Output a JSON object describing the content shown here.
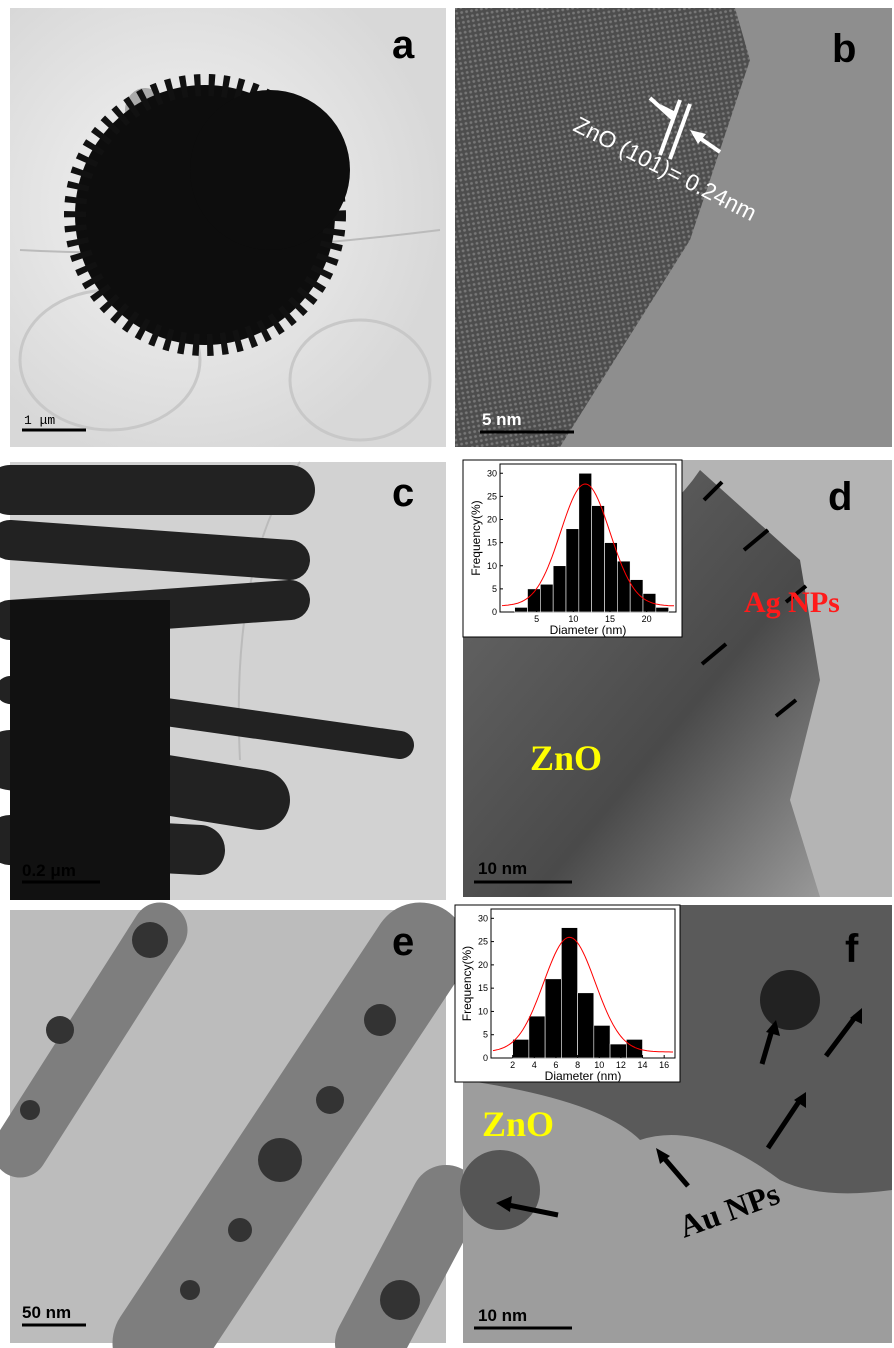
{
  "panels": [
    {
      "label": "a",
      "scale_bar": "1 μm"
    },
    {
      "label": "b",
      "scale_bar": "5 nm",
      "annotation": "ZnO (101)= 0.24nm"
    },
    {
      "label": "c",
      "scale_bar": "0.2 μm"
    },
    {
      "label": "d",
      "scale_bar": "10 nm",
      "annotations": [
        "Ag NPs",
        "ZnO"
      ],
      "inset": {
        "type": "histogram",
        "xlabel": "Diameter (nm)",
        "ylabel": "Frequency(%)",
        "bins": [
          2,
          3.75,
          5.5,
          7.25,
          9,
          10.75,
          12.5,
          14.25,
          16,
          17.75,
          19.5,
          21.25,
          23
        ],
        "values": [
          1,
          5,
          6,
          10,
          18,
          30,
          23,
          15,
          11,
          7,
          4,
          1
        ],
        "xlim": [
          0,
          24
        ],
        "ylim": [
          0,
          32
        ],
        "xticks": [
          5,
          10,
          15,
          20
        ],
        "yticks": [
          0,
          5,
          10,
          15,
          20,
          25,
          30
        ],
        "color": "#000000",
        "fit_color": "#ff0000"
      }
    },
    {
      "label": "e",
      "scale_bar": "50 nm"
    },
    {
      "label": "f",
      "scale_bar": "10 nm",
      "annotations": [
        "ZnO",
        "Au NPs"
      ],
      "inset": {
        "type": "histogram",
        "xlabel": "Diameter (nm)",
        "ylabel": "Frequency(%)",
        "bins": [
          2,
          3.5,
          5,
          6.5,
          8,
          9.5,
          11,
          12.5,
          14
        ],
        "values": [
          4,
          9,
          17,
          28,
          14,
          7,
          3,
          4
        ],
        "xlim": [
          0,
          17
        ],
        "ylim": [
          0,
          32
        ],
        "xticks": [
          2,
          4,
          6,
          8,
          10,
          12,
          14,
          16
        ],
        "yticks": [
          0,
          5,
          10,
          15,
          20,
          25,
          30
        ],
        "color": "#000000",
        "fit_color": "#ff0000"
      }
    }
  ]
}
